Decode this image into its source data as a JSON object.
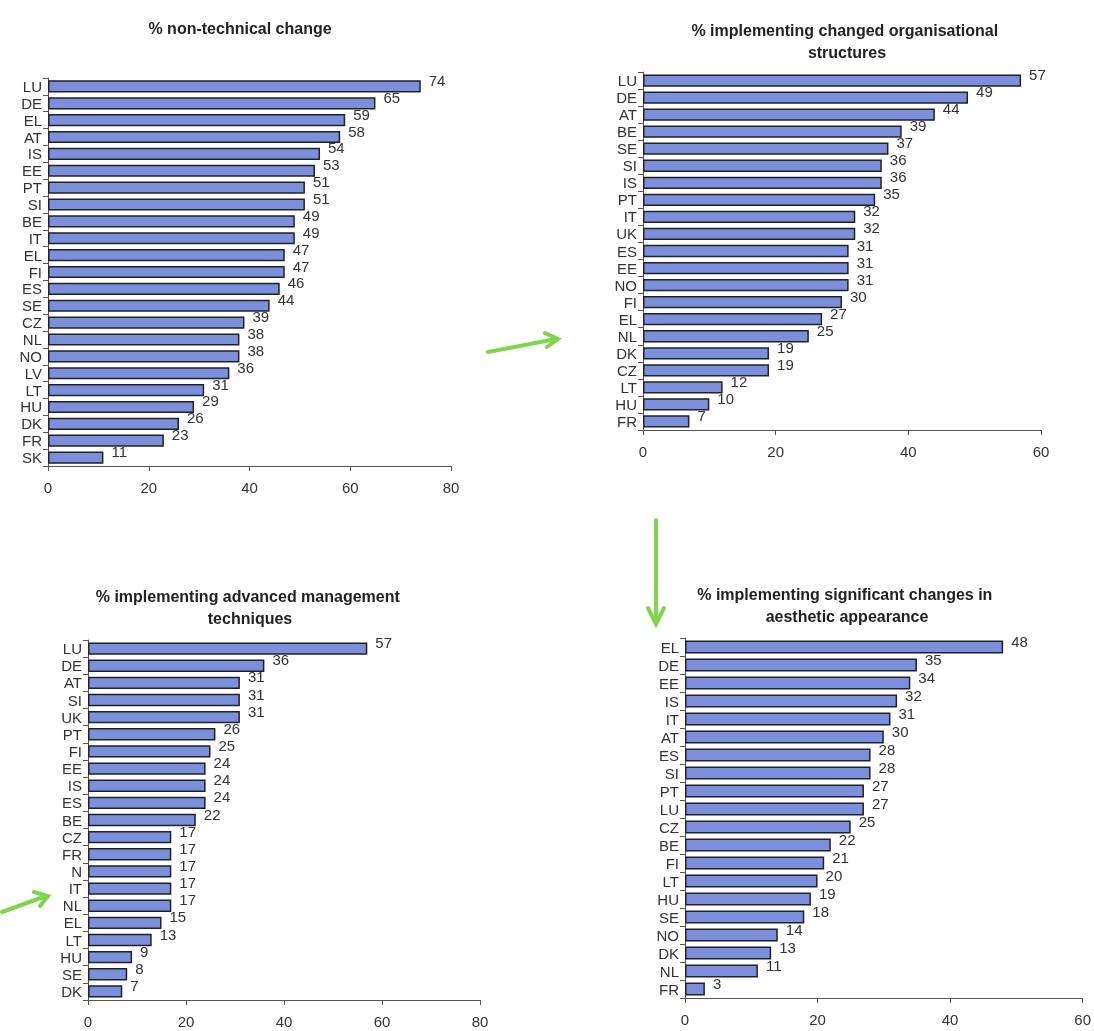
{
  "chart_data": [
    {
      "type": "bar",
      "orientation": "horizontal",
      "title": "% non-technical change",
      "categories": [
        "LU",
        "DE",
        "EL",
        "AT",
        "IS",
        "EE",
        "PT",
        "SI",
        "BE",
        "IT",
        "EL",
        "FI",
        "ES",
        "SE",
        "CZ",
        "NL",
        "NO",
        "LV",
        "LT",
        "HU",
        "DK",
        "FR",
        "SK"
      ],
      "values": [
        74,
        65,
        59,
        58,
        54,
        53,
        51,
        51,
        49,
        49,
        47,
        47,
        46,
        44,
        39,
        38,
        38,
        36,
        31,
        29,
        26,
        23,
        11
      ],
      "color": "#7b8fdc",
      "xlim": [
        0,
        80
      ],
      "xticks": [
        0,
        20,
        40,
        60,
        80
      ],
      "data_labels": true
    },
    {
      "type": "bar",
      "orientation": "horizontal",
      "title": "% implementing changed organisational structures",
      "categories": [
        "LU",
        "DE",
        "AT",
        "BE",
        "SE",
        "SI",
        "IS",
        "PT",
        "IT",
        "UK",
        "ES",
        "EE",
        "NO",
        "FI",
        "EL",
        "NL",
        "DK",
        "CZ",
        "LT",
        "HU",
        "FR"
      ],
      "values": [
        57,
        49,
        44,
        39,
        37,
        36,
        36,
        35,
        32,
        32,
        31,
        31,
        31,
        30,
        27,
        25,
        19,
        19,
        12,
        10,
        7
      ],
      "color": "#7b8fdc",
      "xlim": [
        0,
        60
      ],
      "xticks": [
        0,
        20,
        40,
        60
      ],
      "data_labels": true
    },
    {
      "type": "bar",
      "orientation": "horizontal",
      "title": "% implementing advanced management techniques",
      "categories": [
        "LU",
        "DE",
        "AT",
        "SI",
        "UK",
        "PT",
        "FI",
        "EE",
        "IS",
        "ES",
        "BE",
        "CZ",
        "FR",
        "N",
        "IT",
        "NL",
        "EL",
        "LT",
        "HU",
        "SE",
        "DK"
      ],
      "values": [
        57,
        36,
        31,
        31,
        31,
        26,
        25,
        24,
        24,
        24,
        22,
        17,
        17,
        17,
        17,
        17,
        15,
        13,
        9,
        8,
        7
      ],
      "color": "#7b8fdc",
      "xlim": [
        0,
        80
      ],
      "xticks": [
        0,
        20,
        40,
        60,
        80
      ],
      "data_labels": true
    },
    {
      "type": "bar",
      "orientation": "horizontal",
      "title": "% implementing significant changes in aesthetic appearance",
      "categories": [
        "EL",
        "DE",
        "EE",
        "IS",
        "IT",
        "AT",
        "ES",
        "SI",
        "PT",
        "LU",
        "CZ",
        "BE",
        "FI",
        "LT",
        "HU",
        "SE",
        "NO",
        "DK",
        "NL",
        "FR"
      ],
      "values": [
        48,
        35,
        34,
        32,
        31,
        30,
        28,
        28,
        27,
        27,
        25,
        22,
        21,
        20,
        19,
        18,
        14,
        13,
        11,
        3
      ],
      "color": "#7b8fdc",
      "xlim": [
        0,
        60
      ],
      "xticks": [
        0,
        20,
        40,
        60
      ],
      "data_labels": true
    }
  ]
}
